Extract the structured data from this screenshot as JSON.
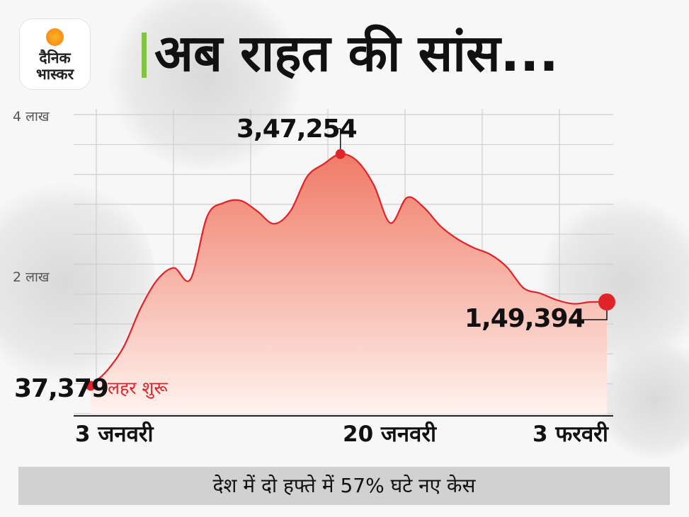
{
  "brand": {
    "line1": "दैनिक",
    "line2": "भास्कर"
  },
  "headline": "अब राहत की सांस...",
  "footer_text": "देश में दो हफ्ते में 57% घटे नए केस",
  "colors": {
    "line": "#e1232a",
    "fill_top": "#f07a66",
    "fill_bottom": "#fff3ef",
    "accent": "#82c341",
    "grid": "#cfcfcf"
  },
  "chart_data": {
    "type": "area",
    "title": "अब राहत की सांस...",
    "xlabel": "",
    "ylabel": "",
    "ylim": [
      0,
      400000
    ],
    "y_ticks": [
      {
        "value": 400000,
        "label": "4 लाख"
      },
      {
        "value": 200000,
        "label": "2 लाख"
      }
    ],
    "x_ticks": [
      {
        "day": 0,
        "label": "3 जनवरी"
      },
      {
        "day": 17,
        "label": "20 जनवरी"
      },
      {
        "day": 31,
        "label": "3 फरवरी"
      }
    ],
    "x": [
      0,
      1,
      2,
      3,
      4,
      5,
      6,
      7,
      8,
      9,
      10,
      11,
      12,
      13,
      14,
      15,
      16,
      17,
      18,
      19,
      20,
      21,
      22,
      23,
      24,
      25,
      26,
      27,
      28,
      29,
      30,
      31
    ],
    "values": [
      37379,
      58000,
      90000,
      141000,
      179000,
      195000,
      180000,
      264000,
      282000,
      285000,
      271000,
      254000,
      271000,
      317000,
      334000,
      347254,
      338000,
      306000,
      255000,
      289000,
      276000,
      251000,
      234000,
      222000,
      213000,
      196000,
      168000,
      161000,
      152000,
      147000,
      149394,
      149394
    ],
    "annotations": [
      {
        "label": "37,379",
        "value": 37379,
        "day": 0
      },
      {
        "label": "लहर शुरू",
        "day": 0
      },
      {
        "label": "3,47,254",
        "value": 347254,
        "day": 15
      },
      {
        "label": "1,49,394",
        "value": 149394,
        "day": 31
      }
    ],
    "grid": true
  }
}
